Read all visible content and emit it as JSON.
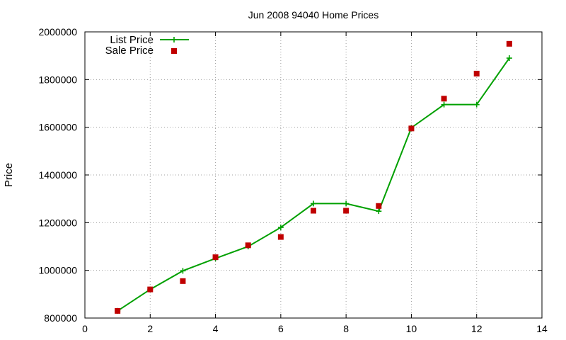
{
  "chart_data": {
    "type": "line",
    "title": "Jun 2008 94040 Home Prices",
    "xlabel": "",
    "ylabel": "Price",
    "xlim": [
      0,
      14
    ],
    "ylim": [
      800000,
      2000000
    ],
    "x_ticks": [
      0,
      2,
      4,
      6,
      8,
      10,
      12,
      14
    ],
    "y_ticks": [
      800000,
      1000000,
      1200000,
      1400000,
      1600000,
      1800000,
      2000000
    ],
    "grid": true,
    "legend_position": "top-left",
    "series": [
      {
        "name": "List Price",
        "style": "line-with-plus-markers",
        "color": "#00a000",
        "x": [
          1,
          2,
          3,
          4,
          5,
          6,
          7,
          8,
          9,
          10,
          11,
          12,
          13
        ],
        "y": [
          830000,
          920000,
          998000,
          1050000,
          1100000,
          1180000,
          1280000,
          1280000,
          1248000,
          1598000,
          1695000,
          1695000,
          1890000
        ]
      },
      {
        "name": "Sale Price",
        "style": "square-markers",
        "color": "#c00000",
        "x": [
          1,
          2,
          3,
          4,
          5,
          6,
          7,
          8,
          9,
          10,
          11,
          12,
          13
        ],
        "y": [
          830000,
          920000,
          955000,
          1055000,
          1105000,
          1140000,
          1250000,
          1250000,
          1270000,
          1595000,
          1720000,
          1825000,
          1950000
        ]
      }
    ]
  }
}
